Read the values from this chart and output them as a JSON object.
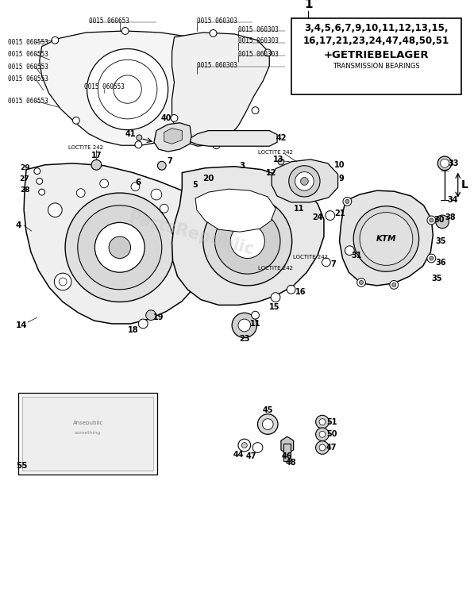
{
  "bg_color": "#ffffff",
  "box_text_line1": "3,4,5,6,7,9,10,11,12,13,15,",
  "box_text_line2": "16,17,21,23,24,47,48,50,51",
  "box_text_line3": "+GETRIEBELAGER",
  "box_text_line4": "TRANSMISSION BEARINGS",
  "watermark": "PartsRepublic",
  "watermark_color": "#c8c8c8",
  "watermark_alpha": 0.45,
  "part1_label": "1",
  "loctite": "LOCTITE 242",
  "label_L": "L",
  "part_num_55_text1": "Ansepublic",
  "gasket_left_parts": [
    "0015 060653",
    "0015 060553",
    "0015 060553",
    "0015 060553",
    "0015 060553",
    "0015 060553"
  ],
  "gasket_right_parts": [
    "0015 060303",
    "0015 060303",
    "0015 060303",
    "0015 060303",
    "0015 060303"
  ]
}
